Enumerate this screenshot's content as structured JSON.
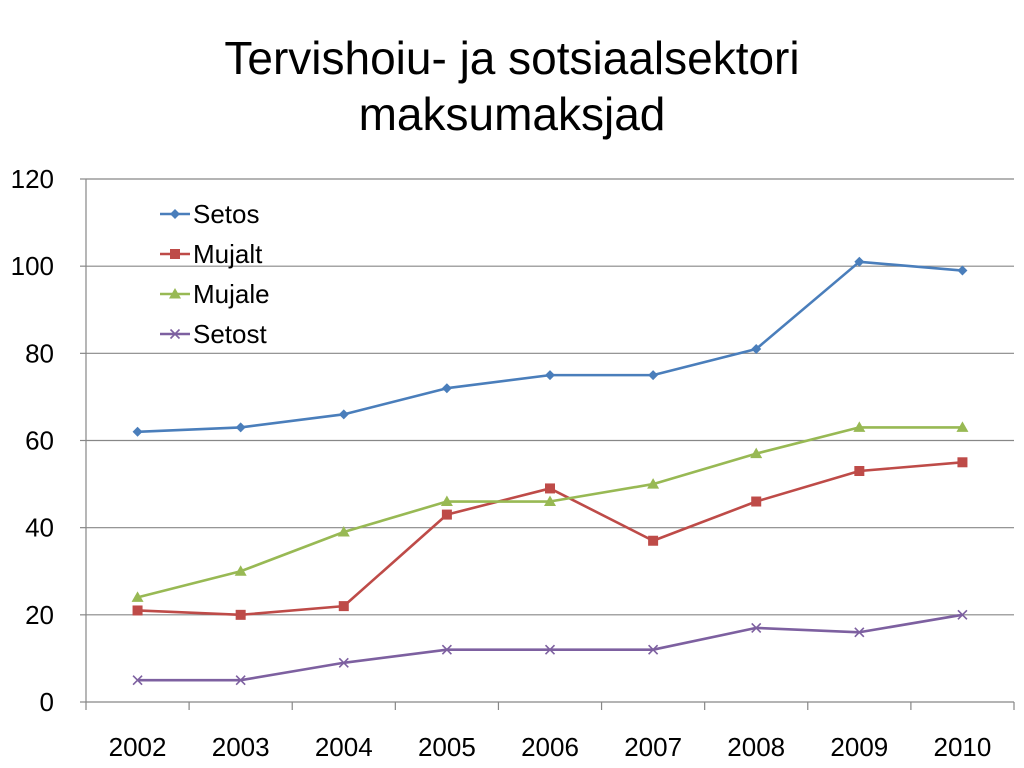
{
  "chart_data": {
    "type": "line",
    "title": "Tervishoiu- ja sotsiaalsektori maksumaksjad",
    "title_lines": [
      "Tervishoiu- ja sotsiaalsektori",
      "maksumaksjad"
    ],
    "categories": [
      "2002",
      "2003",
      "2004",
      "2005",
      "2006",
      "2007",
      "2008",
      "2009",
      "2010"
    ],
    "ylim": [
      0,
      120
    ],
    "yticks": [
      "0",
      "20",
      "40",
      "60",
      "80",
      "100",
      "120"
    ],
    "grid": true,
    "legend_position": "top-left",
    "series": [
      {
        "name": "Setos",
        "color": "#4A7EBB",
        "marker": "diamond",
        "values": [
          62,
          63,
          66,
          72,
          75,
          75,
          81,
          101,
          99
        ]
      },
      {
        "name": "Mujalt",
        "color": "#BE4B48",
        "marker": "square",
        "values": [
          21,
          20,
          22,
          43,
          49,
          37,
          46,
          53,
          55
        ]
      },
      {
        "name": "Mujale",
        "color": "#98B954",
        "marker": "triangle",
        "values": [
          24,
          30,
          39,
          46,
          46,
          50,
          57,
          63,
          63
        ]
      },
      {
        "name": "Setost",
        "color": "#7D60A0",
        "marker": "x",
        "values": [
          5,
          5,
          9,
          12,
          12,
          12,
          17,
          16,
          20
        ]
      }
    ]
  }
}
